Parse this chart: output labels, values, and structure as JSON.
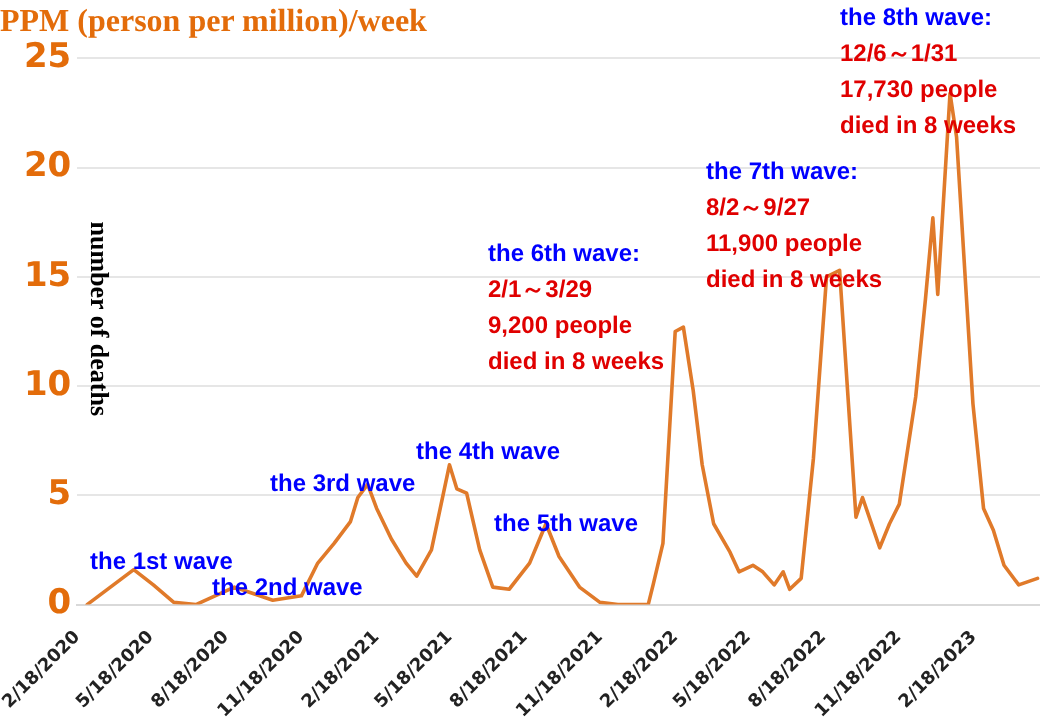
{
  "chart_data": {
    "type": "line",
    "title": "PPM (person per million)/week",
    "ylabel": "number of deaths",
    "x": [
      "2020-03-01",
      "2020-04-27",
      "2020-05-21",
      "2020-06-15",
      "2020-07-12",
      "2020-08-28",
      "2020-10-14",
      "2020-11-18",
      "2020-12-08",
      "2020-12-28",
      "2021-01-17",
      "2021-01-26",
      "2021-02-07",
      "2021-02-18",
      "2021-03-08",
      "2021-03-26",
      "2021-04-08",
      "2021-04-26",
      "2021-05-18",
      "2021-05-27",
      "2021-06-08",
      "2021-06-24",
      "2021-07-10",
      "2021-07-30",
      "2021-08-24",
      "2021-09-13",
      "2021-09-29",
      "2021-10-24",
      "2021-11-18",
      "2021-12-10",
      "2022-01-16",
      "2022-01-22",
      "2022-02-03",
      "2022-02-18",
      "2022-02-28",
      "2022-03-12",
      "2022-03-23",
      "2022-04-06",
      "2022-04-26",
      "2022-05-07",
      "2022-05-24",
      "2022-06-05",
      "2022-06-19",
      "2022-06-30",
      "2022-07-08",
      "2022-07-22",
      "2022-08-06",
      "2022-08-22",
      "2022-09-07",
      "2022-09-27",
      "2022-10-05",
      "2022-10-26",
      "2022-11-07",
      "2022-11-19",
      "2022-12-09",
      "2022-12-21",
      "2022-12-30",
      "2023-01-05",
      "2023-01-20",
      "2023-01-28",
      "2023-02-17",
      "2023-03-02",
      "2023-03-14",
      "2023-03-27",
      "2023-04-14",
      "2023-05-07"
    ],
    "series": [
      {
        "color": "#e07a2a",
        "values": [
          0,
          1.6,
          0.9,
          0.1,
          0,
          0.8,
          0.2,
          0.4,
          1.9,
          2.8,
          3.8,
          4.9,
          5.5,
          4.4,
          3.0,
          1.9,
          1.3,
          2.5,
          6.4,
          5.3,
          5.1,
          2.5,
          0.8,
          0.7,
          1.9,
          3.7,
          2.2,
          0.8,
          0.1,
          0,
          0,
          0.9,
          2.8,
          12.5,
          12.7,
          9.8,
          6.4,
          3.7,
          2.4,
          1.5,
          1.8,
          1.5,
          0.9,
          1.5,
          0.7,
          1.2,
          6.7,
          15.0,
          15.3,
          4.0,
          4.9,
          2.6,
          3.7,
          4.6,
          9.5,
          14.0,
          17.7,
          14.2,
          23.4,
          21.4,
          9.2,
          4.4,
          3.4,
          1.8,
          0.9,
          1.2
        ]
      }
    ],
    "xlim": [
      "2020-02-18",
      "2023-05-10"
    ],
    "xticks": [
      {
        "value": "2020-02-18",
        "label": "2/18/2020"
      },
      {
        "value": "2020-05-18",
        "label": "5/18/2020"
      },
      {
        "value": "2020-08-18",
        "label": "8/18/2020"
      },
      {
        "value": "2020-11-18",
        "label": "11/18/2020"
      },
      {
        "value": "2021-02-18",
        "label": "2/18/2021"
      },
      {
        "value": "2021-05-18",
        "label": "5/18/2021"
      },
      {
        "value": "2021-08-18",
        "label": "8/18/2021"
      },
      {
        "value": "2021-11-18",
        "label": "11/18/2021"
      },
      {
        "value": "2022-02-18",
        "label": "2/18/2022"
      },
      {
        "value": "2022-05-18",
        "label": "5/18/2022"
      },
      {
        "value": "2022-08-18",
        "label": "8/18/2022"
      },
      {
        "value": "2022-11-18",
        "label": "11/18/2022"
      },
      {
        "value": "2023-02-18",
        "label": "2/18/2023"
      }
    ],
    "ylim": [
      0,
      25
    ],
    "yticks": [
      0,
      5,
      10,
      15,
      20,
      25
    ],
    "grid": "y",
    "legend": false,
    "marker": "none",
    "line_style": "solid",
    "annotations": [
      "the 1st wave",
      "the 2nd wave",
      "the 3rd wave",
      "the 4th wave",
      "the 5th wave",
      "the 6th wave:\n2/1～3/29\n9,200 people\ndied in 8 weeks",
      "the 7th wave:\n8/2～9/27\n11,900 people\ndied in 8 weeks",
      "the 8th wave:\n12/6～1/31\n17,730 people\ndied in 8 weeks"
    ]
  }
}
